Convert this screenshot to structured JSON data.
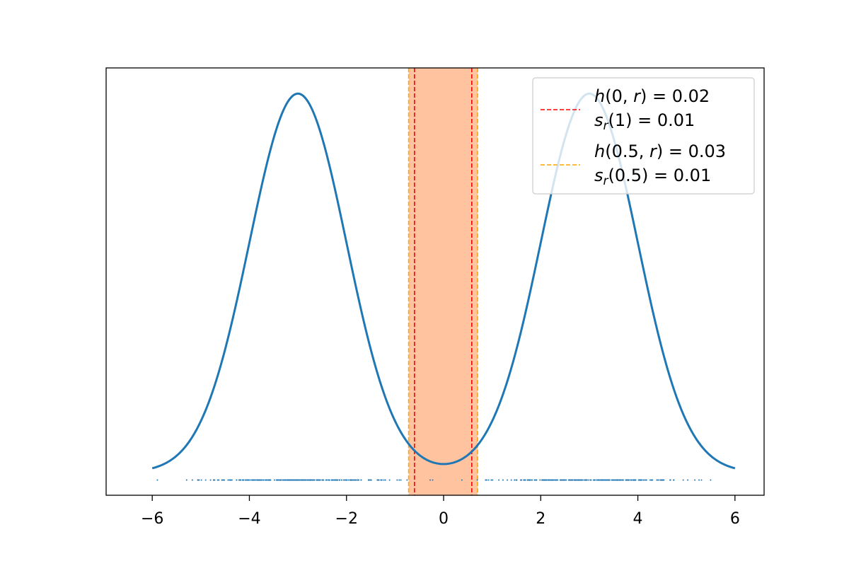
{
  "chart_data": {
    "type": "line",
    "title": "",
    "xlabel": "",
    "ylabel": "",
    "xlim": [
      -6.95,
      6.6
    ],
    "ylim": [
      -0.012,
      0.213
    ],
    "xticks": [
      -6,
      -4,
      -2,
      0,
      2,
      4,
      6
    ],
    "xtick_labels": [
      "−6",
      "−4",
      "−2",
      "0",
      "2",
      "4",
      "6"
    ],
    "yticks_visible": false,
    "grid": false,
    "legend_position": "top-right",
    "colors": {
      "curve": "#1f77b4",
      "samples": "#1f77b4",
      "red_lines": "#ff0000",
      "orange_lines": "#ffa500",
      "band_fill": "#ffc3a0"
    },
    "curve": {
      "name": "density",
      "description": "mixture of two Gaussians centred at -3 and 3",
      "x_range": [
        -6,
        6
      ],
      "components": [
        {
          "mean": -3,
          "sd": 1,
          "weight": 0.5
        },
        {
          "mean": 3,
          "sd": 1,
          "weight": 0.5
        }
      ]
    },
    "samples": {
      "y": -0.004,
      "x_min": -6.35,
      "x_max": 5.95,
      "count": 500
    },
    "band": {
      "x_from": -0.72,
      "x_to": 0.7
    },
    "red_lines_x": [
      -0.6,
      0.58
    ],
    "orange_lines_x": [
      -0.72,
      0.7
    ],
    "legend": [
      {
        "style": "dashed",
        "color": "#ff0000",
        "line1_pre": "h",
        "line1_post": "(0, ",
        "line1_var": "r",
        "line1_end": ") = 0.02",
        "line2_pre": "s",
        "line2_sub": "r",
        "line2_end": "(1) = 0.01"
      },
      {
        "style": "dashed",
        "color": "#ffa500",
        "line1_pre": "h",
        "line1_post": "(0.5, ",
        "line1_var": "r",
        "line1_end": ") =  0.03",
        "line2_pre": "s",
        "line2_sub": "r",
        "line2_end": "(0.5) = 0.01"
      }
    ]
  }
}
